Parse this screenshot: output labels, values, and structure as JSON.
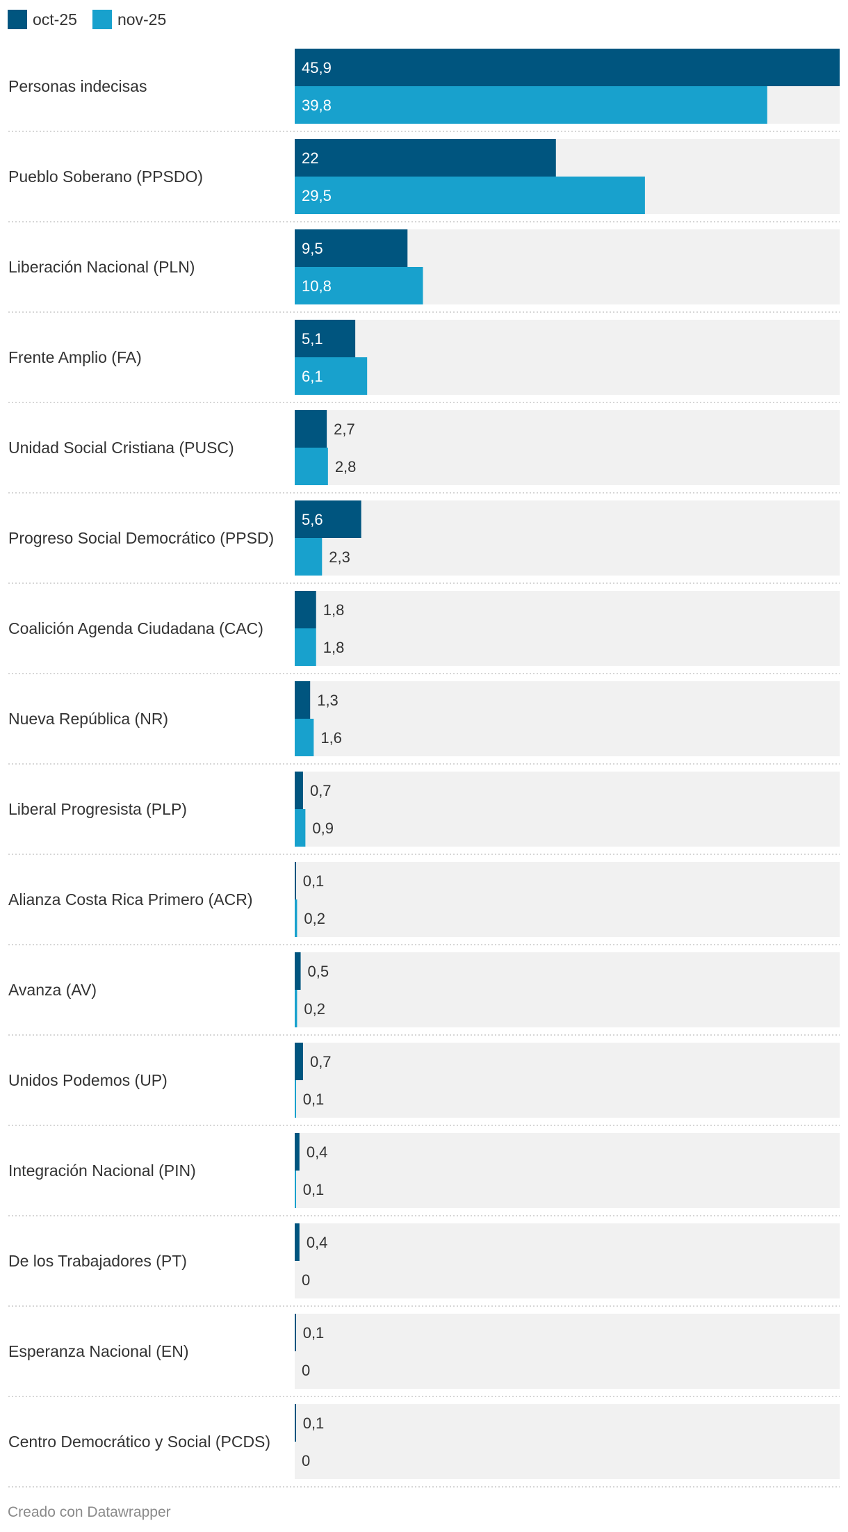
{
  "legend": {
    "items": [
      {
        "label": "oct-25",
        "color": "#00557f"
      },
      {
        "label": "nov-25",
        "color": "#18a1cd"
      }
    ]
  },
  "footer": {
    "text": "Creado con Datawrapper"
  },
  "chart_data": {
    "type": "bar",
    "orientation": "horizontal",
    "grouped": true,
    "xlim": [
      0,
      45.9
    ],
    "grid": false,
    "legend_position": "top-left",
    "background_color": "#f1f1f1",
    "categories": [
      "Personas indecisas",
      "Pueblo Soberano (PPSDO)",
      "Liberación Nacional (PLN)",
      "Frente Amplio (FA)",
      "Unidad Social Cristiana (PUSC)",
      "Progreso Social Democrático (PPSD)",
      "Coalición Agenda Ciudadana (CAC)",
      "Nueva República (NR)",
      "Liberal Progresista (PLP)",
      "Alianza Costa Rica Primero (ACR)",
      "Avanza (AV)",
      "Unidos Podemos (UP)",
      "Integración Nacional (PIN)",
      "De los Trabajadores (PT)",
      "Esperanza Nacional (EN)",
      "Centro Democrático y Social (PCDS)"
    ],
    "series": [
      {
        "name": "oct-25",
        "color": "#00557f",
        "values": [
          45.9,
          22,
          9.5,
          5.1,
          2.7,
          5.6,
          1.8,
          1.3,
          0.7,
          0.1,
          0.5,
          0.7,
          0.4,
          0.4,
          0.1,
          0.1
        ],
        "labels": [
          "45,9",
          "22",
          "9,5",
          "5,1",
          "2,7",
          "5,6",
          "1,8",
          "1,3",
          "0,7",
          "0,1",
          "0,5",
          "0,7",
          "0,4",
          "0,4",
          "0,1",
          "0,1"
        ]
      },
      {
        "name": "nov-25",
        "color": "#18a1cd",
        "values": [
          39.8,
          29.5,
          10.8,
          6.1,
          2.8,
          2.3,
          1.8,
          1.6,
          0.9,
          0.2,
          0.2,
          0.1,
          0.1,
          0,
          0,
          0
        ],
        "labels": [
          "39,8",
          "29,5",
          "10,8",
          "6,1",
          "2,8",
          "2,3",
          "1,8",
          "1,6",
          "0,9",
          "0,2",
          "0,2",
          "0,1",
          "0,1",
          "0",
          "0",
          "0"
        ]
      }
    ]
  }
}
